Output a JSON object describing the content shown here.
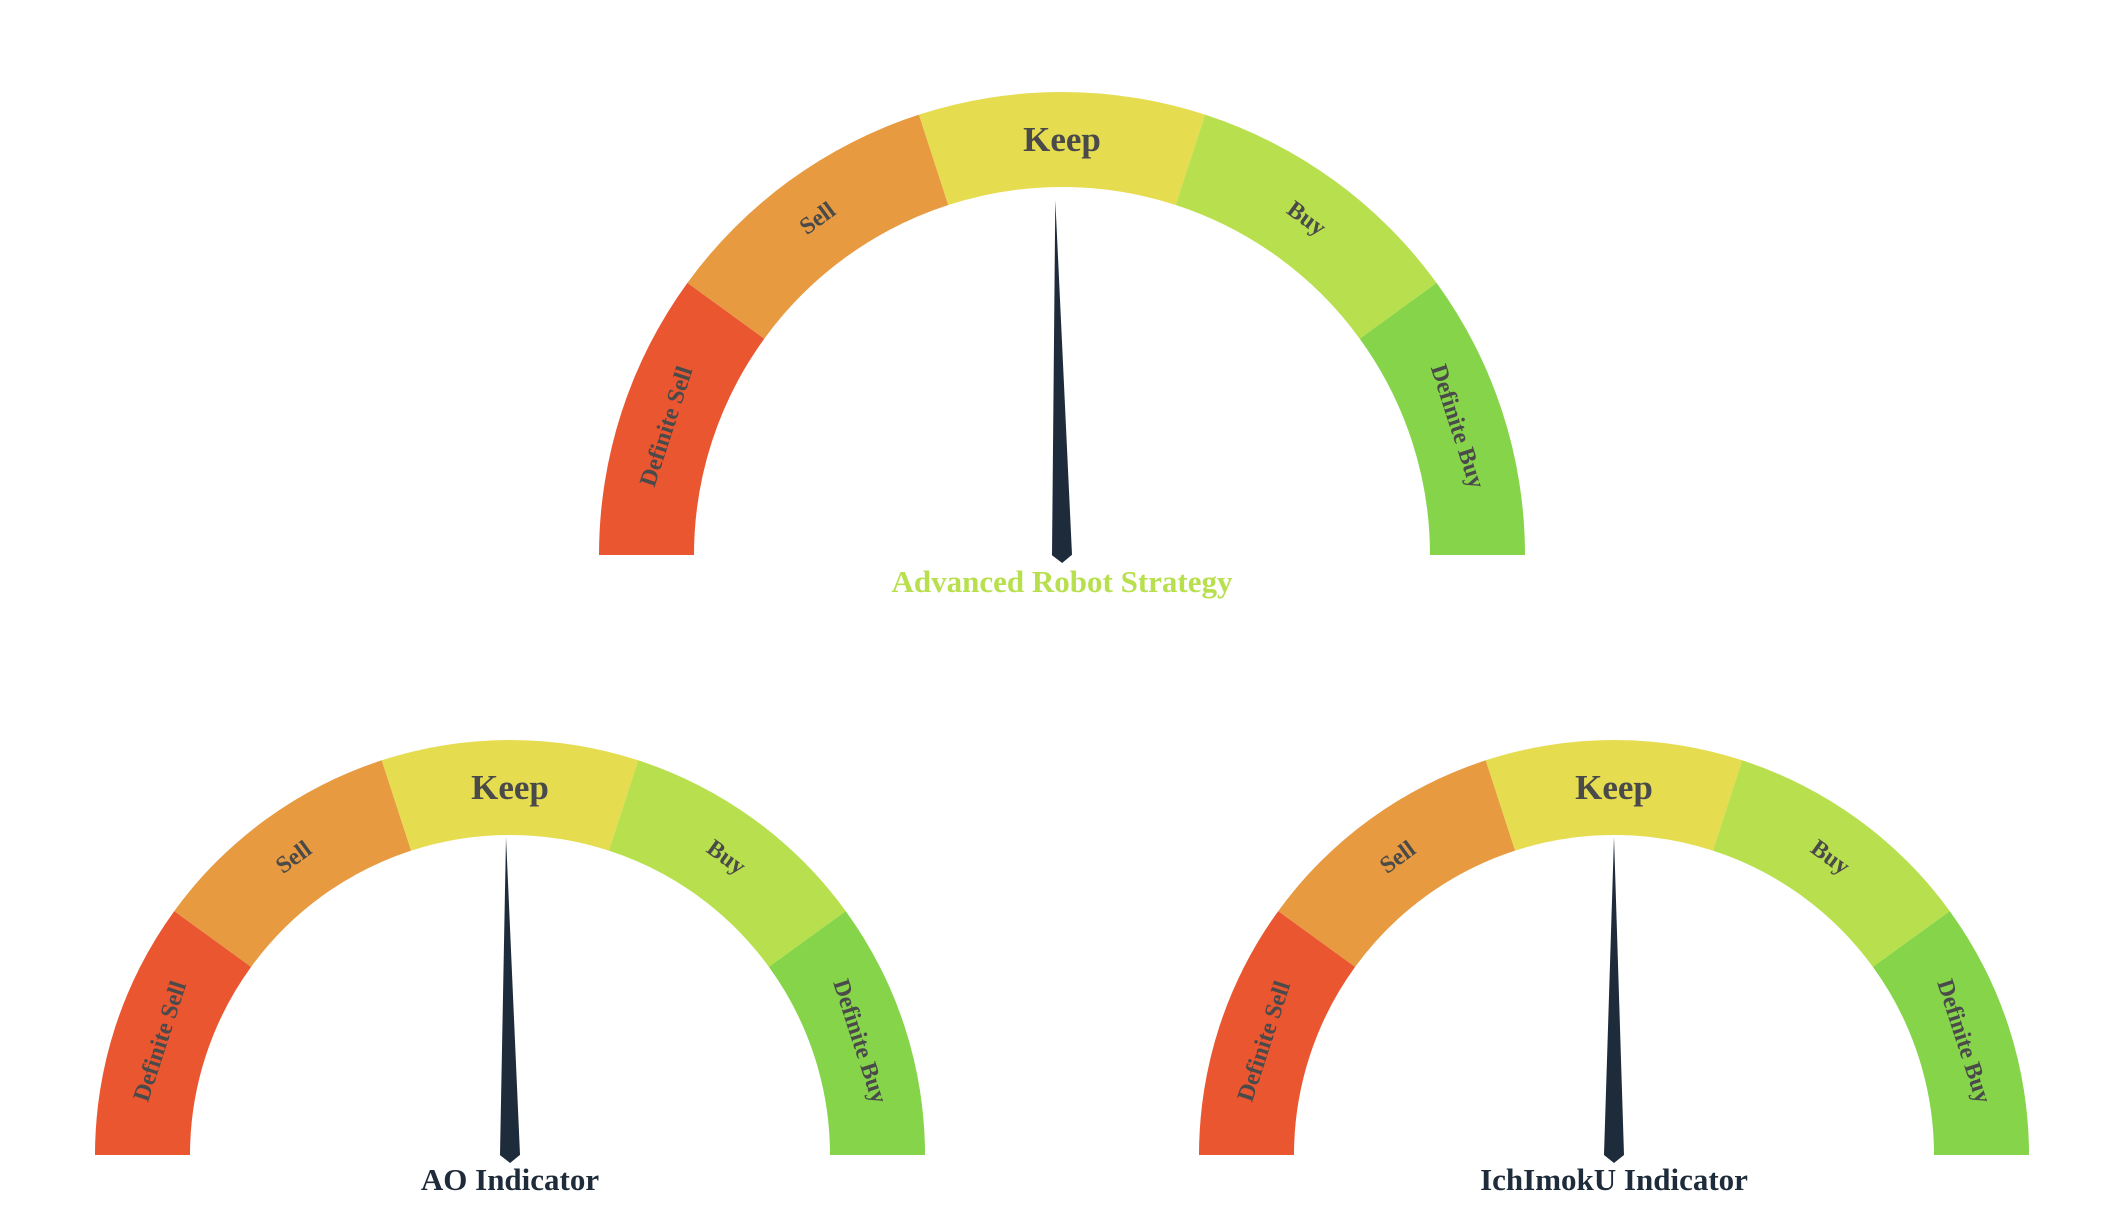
{
  "chart_data": [
    {
      "type": "gauge",
      "title": "Advanced Robot Strategy",
      "title_color": "#b8e04e",
      "segments": [
        {
          "label": "Definite Sell",
          "color": "#ea5630"
        },
        {
          "label": "Sell",
          "color": "#e79a3f"
        },
        {
          "label": "Keep",
          "color": "#e6dc4f"
        },
        {
          "label": "Buy",
          "color": "#b8e04e"
        },
        {
          "label": "Definite Buy",
          "color": "#86d44a"
        }
      ],
      "range": [
        0,
        5
      ],
      "value": 2.47,
      "needle_color": "#1e2b3a"
    },
    {
      "type": "gauge",
      "title": "AO Indicator",
      "title_color": "#1e2b3a",
      "segments": [
        {
          "label": "Definite Sell",
          "color": "#ea5630"
        },
        {
          "label": "Sell",
          "color": "#e79a3f"
        },
        {
          "label": "Keep",
          "color": "#e6dc4f"
        },
        {
          "label": "Buy",
          "color": "#b8e04e"
        },
        {
          "label": "Definite Buy",
          "color": "#86d44a"
        }
      ],
      "range": [
        0,
        5
      ],
      "value": 2.48,
      "needle_color": "#1e2b3a"
    },
    {
      "type": "gauge",
      "title": "IchImokU Indicator",
      "title_color": "#1e2b3a",
      "segments": [
        {
          "label": "Definite Sell",
          "color": "#ea5630"
        },
        {
          "label": "Sell",
          "color": "#e79a3f"
        },
        {
          "label": "Keep",
          "color": "#e6dc4f"
        },
        {
          "label": "Buy",
          "color": "#b8e04e"
        },
        {
          "label": "Definite Buy",
          "color": "#86d44a"
        }
      ],
      "range": [
        0,
        5
      ],
      "value": 2.5,
      "needle_color": "#1e2b3a"
    }
  ]
}
